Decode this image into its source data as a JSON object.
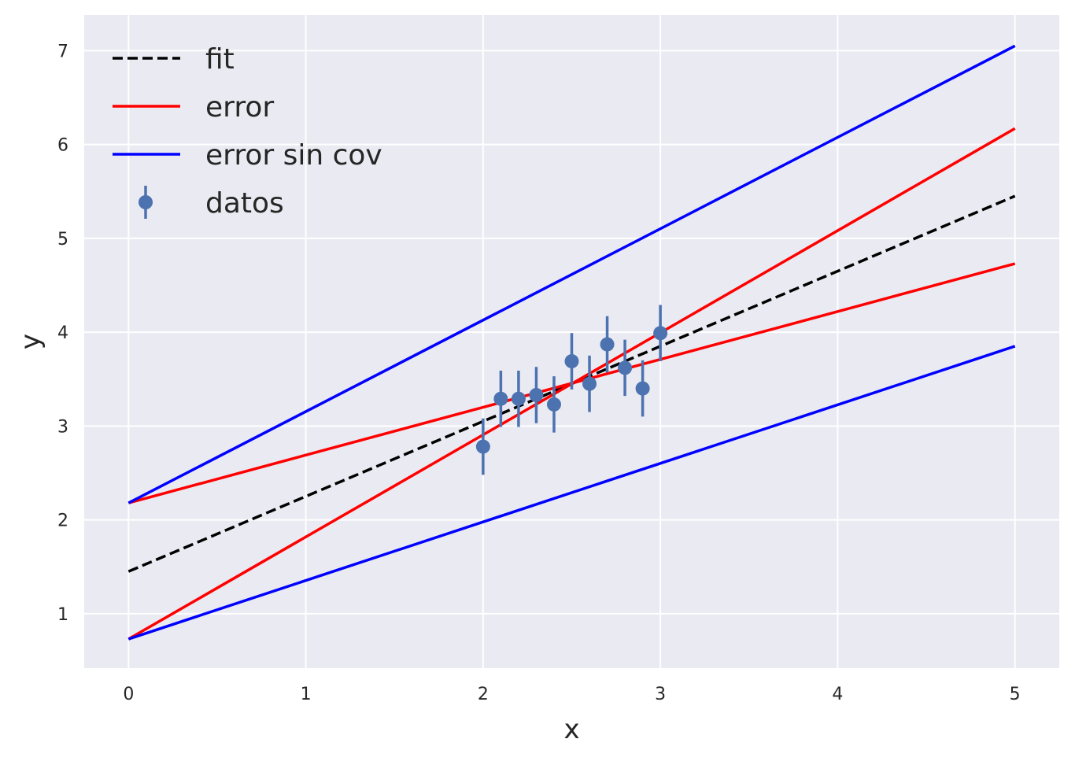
{
  "chart_data": {
    "type": "line",
    "xlabel": "x",
    "ylabel": "y",
    "xlim": [
      -0.25,
      5.25
    ],
    "ylim": [
      0.42,
      7.38
    ],
    "xticks": [
      0,
      1,
      2,
      3,
      4,
      5
    ],
    "yticks": [
      1,
      2,
      3,
      4,
      5,
      6,
      7
    ],
    "grid": true,
    "background": "#EAEAF2",
    "grid_color": "#FFFFFF",
    "legend_position": "top-left",
    "series": [
      {
        "name": "fit",
        "kind": "line",
        "style": "dashed",
        "color": "#000000",
        "x": [
          0,
          5
        ],
        "y": [
          1.45,
          5.45
        ]
      },
      {
        "name": "error",
        "kind": "line",
        "style": "solid",
        "color": "#FF0000",
        "x": [
          0,
          5
        ],
        "y": [
          2.18,
          4.73
        ]
      },
      {
        "name": "error",
        "kind": "line",
        "style": "solid",
        "color": "#FF0000",
        "legend": false,
        "x": [
          0,
          5
        ],
        "y": [
          0.73,
          6.17
        ]
      },
      {
        "name": "error sin cov",
        "kind": "line",
        "style": "solid",
        "color": "#0000FF",
        "x": [
          0,
          5
        ],
        "y": [
          2.18,
          7.05
        ]
      },
      {
        "name": "error sin cov",
        "kind": "line",
        "style": "solid",
        "color": "#0000FF",
        "legend": false,
        "x": [
          0,
          5
        ],
        "y": [
          0.73,
          3.85
        ]
      },
      {
        "name": "datos",
        "kind": "errorbar",
        "color": "#4C72B0",
        "x": [
          2.0,
          2.1,
          2.2,
          2.3,
          2.4,
          2.5,
          2.6,
          2.7,
          2.8,
          2.9,
          3.0
        ],
        "y": [
          2.78,
          3.29,
          3.29,
          3.33,
          3.23,
          3.69,
          3.45,
          3.87,
          3.62,
          3.4,
          3.99
        ],
        "yerr": [
          0.3,
          0.3,
          0.3,
          0.3,
          0.3,
          0.3,
          0.3,
          0.3,
          0.3,
          0.3,
          0.3
        ]
      }
    ]
  }
}
